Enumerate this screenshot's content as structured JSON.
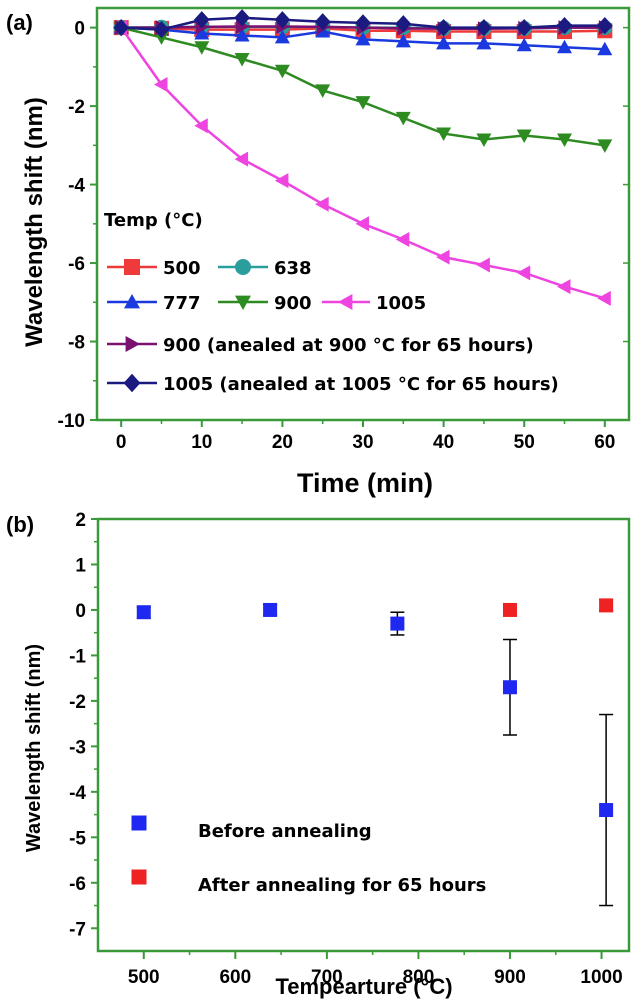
{
  "panels": {
    "a": {
      "tag": "(a)",
      "chart_data": {
        "type": "line",
        "xlabel": "Time (min)",
        "ylabel": "Wavelength shift (nm)",
        "xlim": [
          -3,
          63
        ],
        "ylim": [
          -10,
          0.5
        ],
        "xticks": [
          0,
          10,
          20,
          30,
          40,
          50,
          60
        ],
        "yticks": [
          0,
          -2,
          -4,
          -6,
          -8,
          -10
        ],
        "xtick_labels": [
          "0",
          "10",
          "20",
          "30",
          "40",
          "50",
          "60"
        ],
        "ytick_labels": [
          "0",
          "-2",
          "-4",
          "-6",
          "-8",
          "-10"
        ],
        "legend_title": "Temp (°C)",
        "legend_position": "left",
        "x": [
          0,
          5,
          10,
          15,
          20,
          25,
          30,
          35,
          40,
          45,
          50,
          55,
          60
        ],
        "series": [
          {
            "name": "500",
            "color": "#ee3a3a",
            "marker": "square",
            "values": [
              0,
              -0.02,
              -0.05,
              -0.05,
              -0.05,
              -0.02,
              -0.08,
              -0.08,
              -0.1,
              -0.1,
              -0.1,
              -0.1,
              -0.08
            ]
          },
          {
            "name": "638",
            "color": "#2a9d9d",
            "marker": "circle",
            "values": [
              0,
              0.01,
              0.02,
              0.02,
              0.02,
              0.02,
              0.0,
              0.0,
              -0.02,
              -0.02,
              -0.02,
              0.0,
              0.0
            ]
          },
          {
            "name": "777",
            "color": "#1a3ae0",
            "marker": "triangle-up",
            "values": [
              0,
              -0.05,
              -0.15,
              -0.2,
              -0.25,
              -0.1,
              -0.3,
              -0.35,
              -0.4,
              -0.4,
              -0.45,
              -0.5,
              -0.55
            ]
          },
          {
            "name": "900",
            "color": "#2e8b22",
            "marker": "triangle-down",
            "values": [
              0,
              -0.25,
              -0.5,
              -0.8,
              -1.1,
              -1.6,
              -1.9,
              -2.3,
              -2.7,
              -2.85,
              -2.75,
              -2.85,
              -3.0
            ]
          },
          {
            "name": "1005",
            "color": "#ee44e0",
            "marker": "triangle-left",
            "values": [
              0,
              -1.45,
              -2.5,
              -3.35,
              -3.9,
              -4.5,
              -5.0,
              -5.4,
              -5.85,
              -6.05,
              -6.25,
              -6.6,
              -6.9
            ]
          },
          {
            "name": "900 (anealed at 900 °C for 65 hours)",
            "color": "#7a1070",
            "marker": "triangle-right",
            "values": [
              0,
              0.0,
              0.02,
              0.03,
              0.03,
              0.02,
              0.0,
              -0.02,
              -0.03,
              -0.03,
              -0.02,
              0.0,
              0.0
            ]
          },
          {
            "name": "1005 (anealed at 1005 °C for 65 hours)",
            "color": "#1a1a80",
            "marker": "diamond",
            "values": [
              0,
              -0.05,
              0.2,
              0.25,
              0.2,
              0.15,
              0.12,
              0.1,
              0.0,
              0.0,
              0.0,
              0.05,
              0.05
            ]
          }
        ]
      }
    },
    "b": {
      "tag": "(b)",
      "chart_data": {
        "type": "scatter",
        "xlabel": "Tempearture (°C)",
        "ylabel": "Wavelength shift (nm)",
        "xlim": [
          450,
          1030
        ],
        "ylim": [
          -7.5,
          2
        ],
        "xticks": [
          500,
          600,
          700,
          800,
          900,
          1000
        ],
        "yticks": [
          2,
          1,
          0,
          -1,
          -2,
          -3,
          -4,
          -5,
          -6,
          -7
        ],
        "xtick_labels": [
          "500",
          "600",
          "700",
          "800",
          "900",
          "1000"
        ],
        "ytick_labels": [
          "2",
          "1",
          "0",
          "-1",
          "-2",
          "-3",
          "-4",
          "-5",
          "-6",
          "-7"
        ],
        "legend_position": "bottom-left",
        "series": [
          {
            "name": "Before annealing",
            "color": "#1e28f0",
            "x": [
              500,
              638,
              777,
              900,
              1005
            ],
            "values": [
              -0.05,
              0.0,
              -0.3,
              -1.7,
              -4.4
            ],
            "errors": [
              0.12,
              0.12,
              0.25,
              1.05,
              2.1
            ]
          },
          {
            "name": "After annealing for 65 hours",
            "color": "#ee2222",
            "x": [
              900,
              1005
            ],
            "values": [
              0.0,
              0.1
            ],
            "errors": [
              0.12,
              0.12
            ]
          }
        ]
      }
    }
  }
}
